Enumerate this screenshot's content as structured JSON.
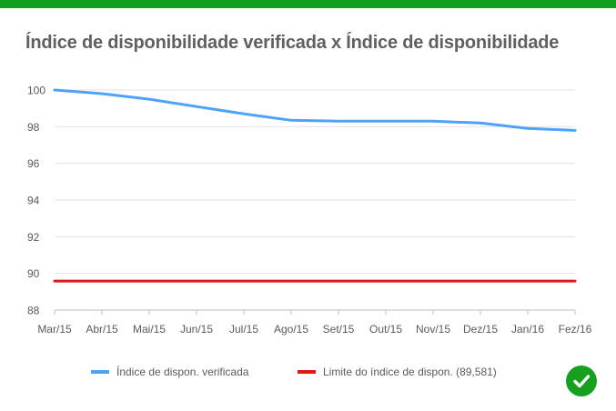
{
  "colors": {
    "top_bar": "#10a01e",
    "series_verified": "#4da3f7",
    "series_limit": "#e0181b",
    "status_ok": "#17a01f"
  },
  "status_icon": "check-circle-icon",
  "chart_data": {
    "type": "line",
    "title": "Índice de disponibilidade verificada x Índice de disponibilidade",
    "xlabel": "",
    "ylabel": "",
    "categories": [
      "Mar/15",
      "Abr/15",
      "Mai/15",
      "Jun/15",
      "Jul/15",
      "Ago/15",
      "Set/15",
      "Out/15",
      "Nov/15",
      "Dez/15",
      "Jan/16",
      "Fez/16"
    ],
    "ylim": [
      88,
      100
    ],
    "yticks": [
      "88",
      "90",
      "92",
      "94",
      "96",
      "98",
      "100"
    ],
    "grid": true,
    "legend_position": "bottom",
    "series": [
      {
        "name": "Índice de dispon. verificada",
        "color": "#4da3f7",
        "values": [
          100,
          99.8,
          99.5,
          99.1,
          98.7,
          98.35,
          98.3,
          98.3,
          98.3,
          98.2,
          97.9,
          97.8
        ]
      },
      {
        "name": "Limite do índice de dispon. (89,581)",
        "color": "#e0181b",
        "values": [
          89.581,
          89.581,
          89.581,
          89.581,
          89.581,
          89.581,
          89.581,
          89.581,
          89.581,
          89.581,
          89.581,
          89.581
        ]
      }
    ]
  }
}
